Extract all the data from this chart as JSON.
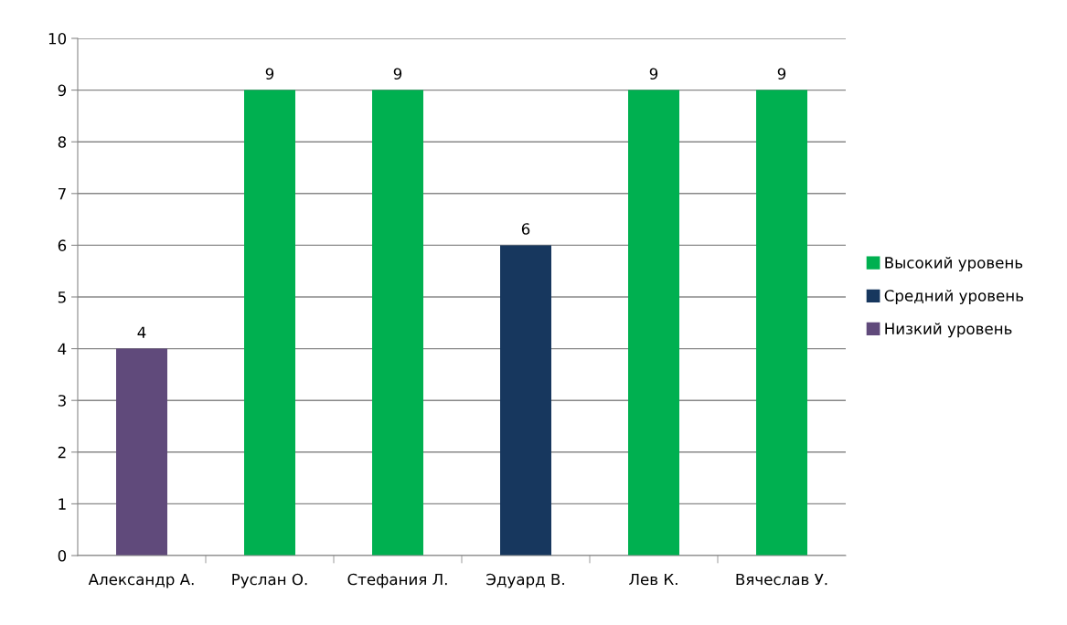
{
  "chart_data": {
    "type": "bar",
    "categories": [
      "Александр А.",
      "Руслан О.",
      "Стефания Л.",
      "Эдуард В.",
      "Лев К.",
      "Вячеслав У."
    ],
    "series": [
      {
        "name": "Высокий уровень",
        "color": "#00b050",
        "values": [
          null,
          9,
          9,
          null,
          9,
          9
        ]
      },
      {
        "name": "Средний уровень",
        "color": "#17375e",
        "values": [
          null,
          null,
          null,
          6,
          null,
          null
        ]
      },
      {
        "name": "Низкий уровень",
        "color": "#604a7b",
        "values": [
          4,
          null,
          null,
          null,
          null,
          null
        ]
      }
    ],
    "ylim": [
      0,
      10
    ],
    "yticks": [
      0,
      1,
      2,
      3,
      4,
      5,
      6,
      7,
      8,
      9,
      10
    ],
    "grid": "y",
    "legend": "right",
    "data_labels": true
  }
}
